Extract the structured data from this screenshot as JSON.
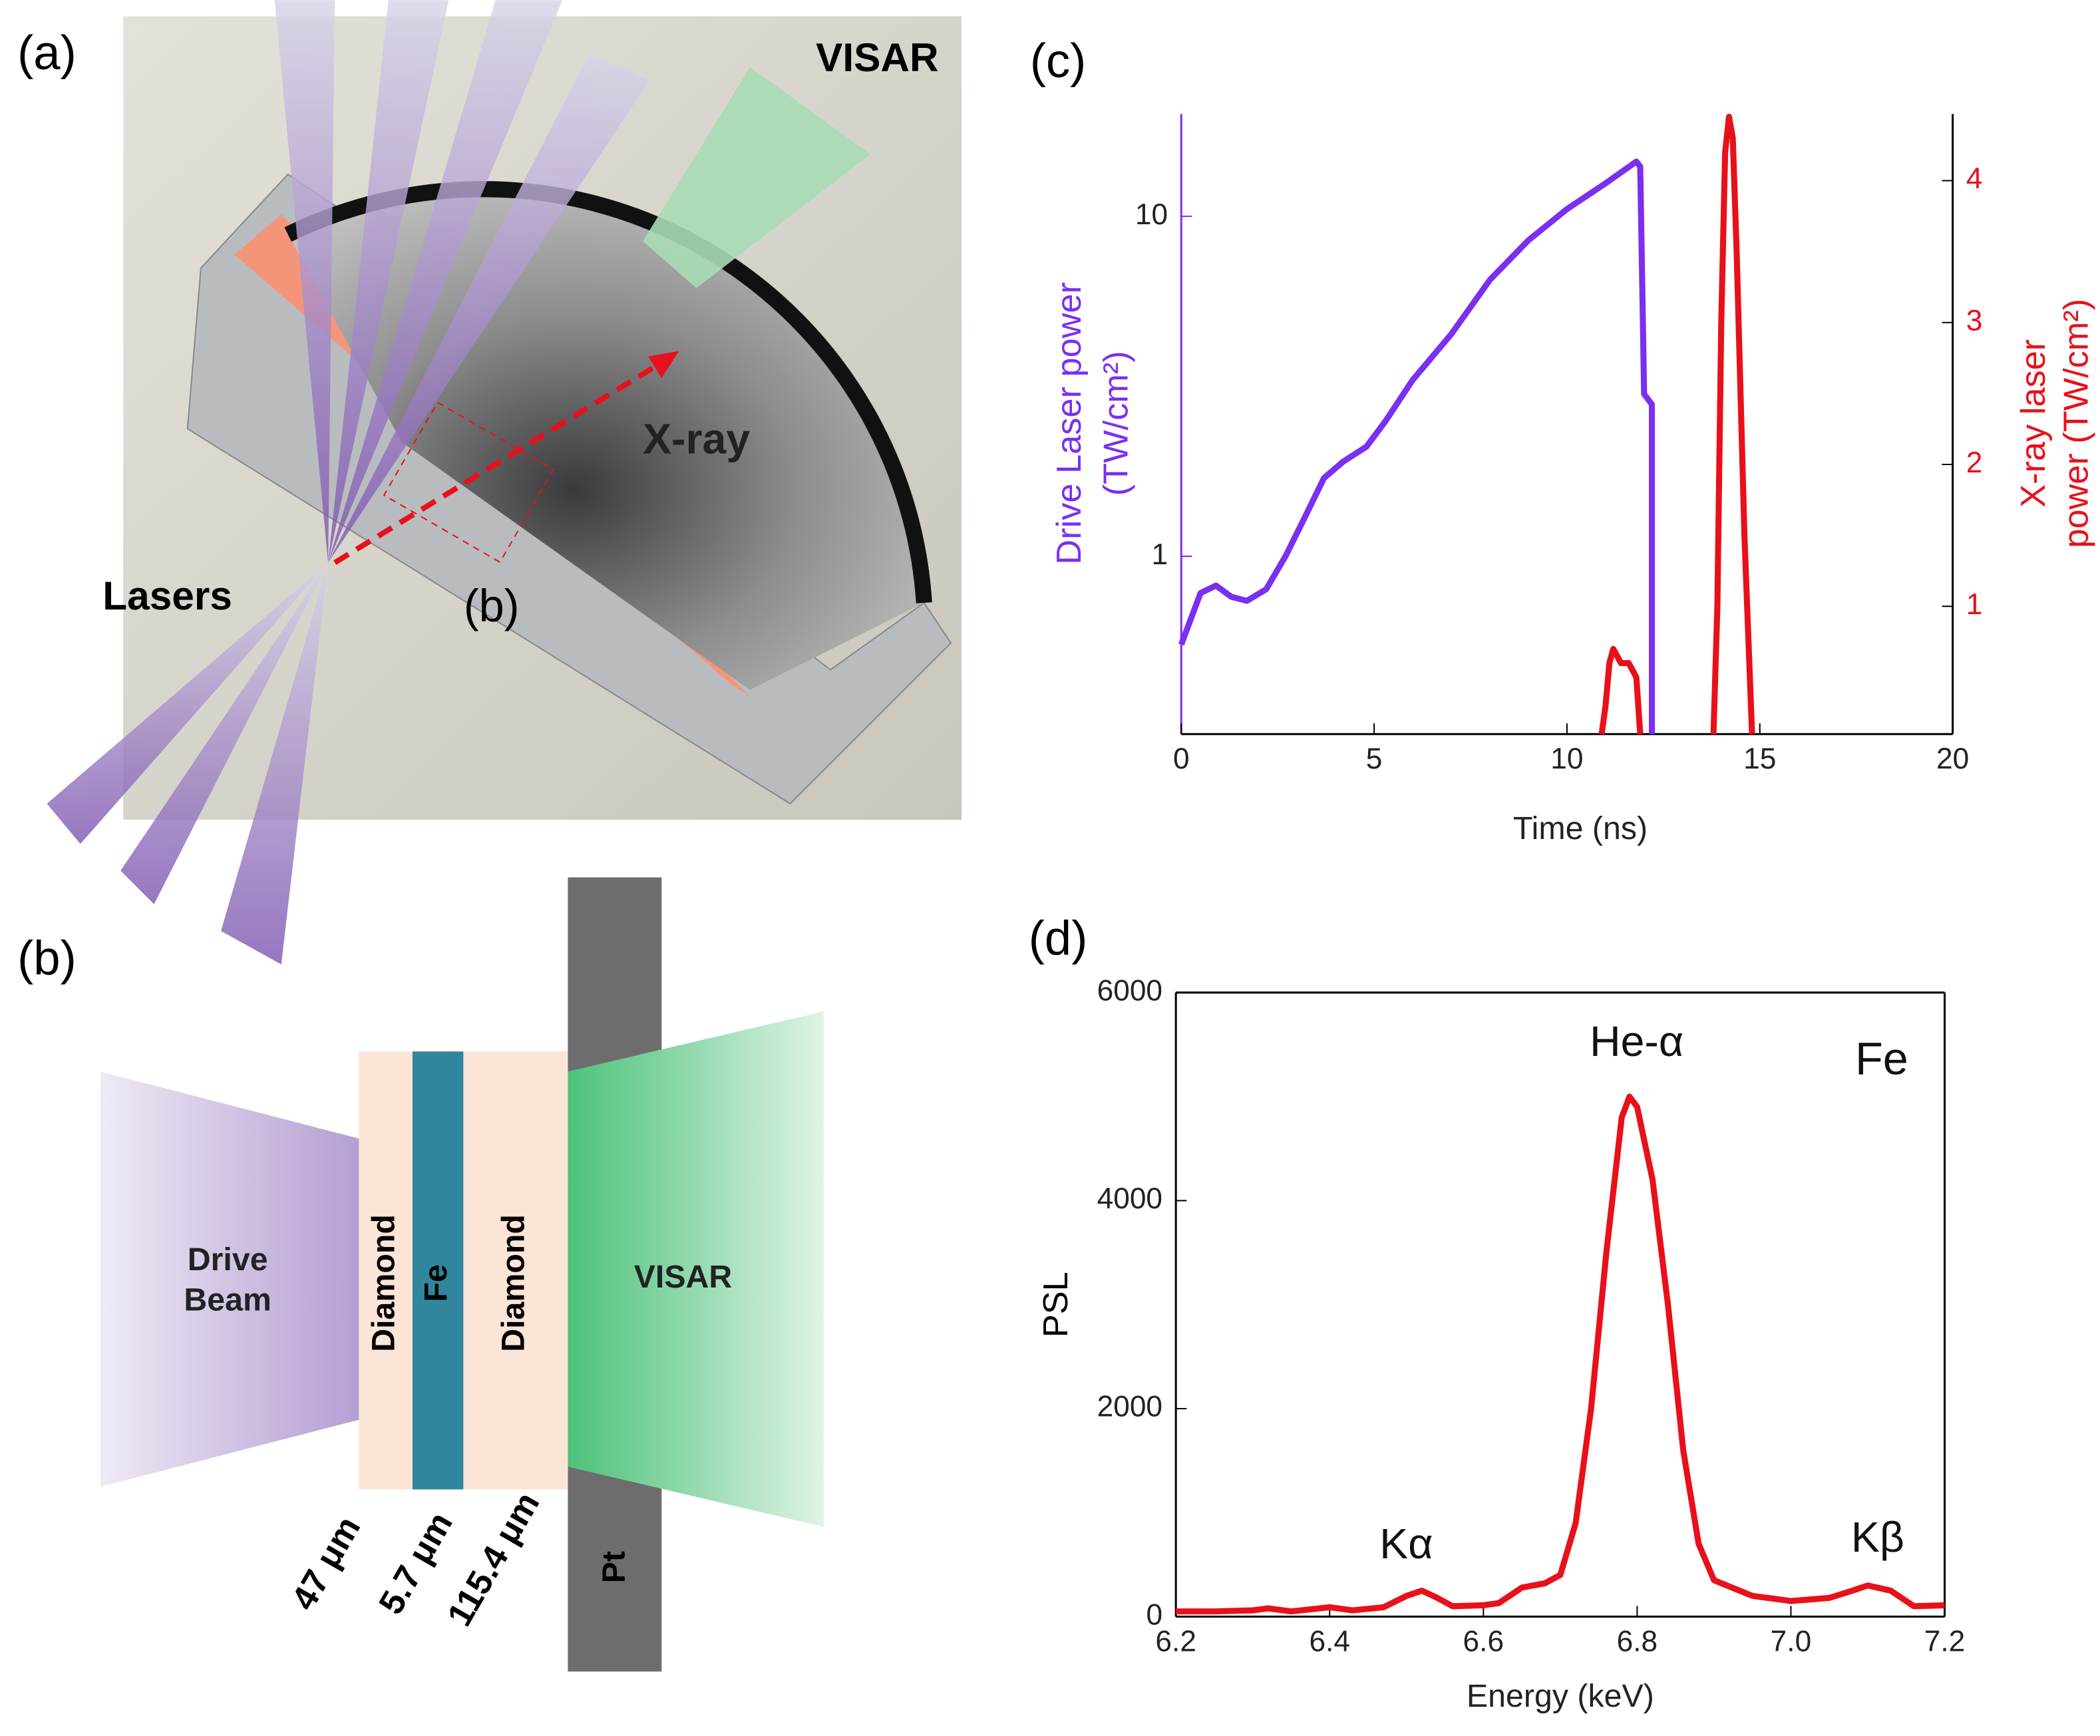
{
  "panels": {
    "a": "(a)",
    "b": "(b)",
    "c": "(c)",
    "d": "(d)"
  },
  "render": {
    "visar": "VISAR",
    "xray": "X-ray",
    "lasers": "Lasers",
    "inset": "(b)"
  },
  "diagram": {
    "drive": [
      "Drive",
      "Beam"
    ],
    "layers": [
      "Diamond",
      "Fe",
      "Diamond"
    ],
    "visar": "VISAR",
    "pt": "Pt",
    "thickness": [
      "47 μm",
      "5.7 μm",
      "115.4 μm"
    ]
  },
  "chart_data": [
    {
      "type": "line",
      "xlabel": "Time (ns)",
      "ylabel": [
        "Drive Laser power",
        "(TW/cm²)"
      ],
      "y2label": [
        "X-ray laser",
        "power (TW/cm²)"
      ],
      "xlim": [
        0,
        20
      ],
      "xticks": [
        0,
        5,
        10,
        15,
        20
      ],
      "ylim": [
        0.3,
        20
      ],
      "ylog": true,
      "yticks": [
        1,
        10
      ],
      "y2lim": [
        0.1,
        4.47
      ],
      "y2ticks": [
        1,
        2,
        3,
        4
      ],
      "grid": false,
      "series": [
        {
          "color": "#7b2ff0",
          "x": [
            0,
            0.5,
            0.9,
            1.3,
            1.7,
            2.2,
            2.7,
            3.2,
            3.7,
            4.2,
            4.8,
            5.3,
            6,
            7,
            8,
            9,
            10,
            11,
            11.8,
            11.9,
            12.0,
            12.2,
            12.2
          ],
          "values": [
            0.55,
            0.78,
            0.82,
            0.76,
            0.74,
            0.8,
            1.0,
            1.3,
            1.7,
            1.9,
            2.1,
            2.5,
            3.3,
            4.5,
            6.5,
            8.5,
            10.5,
            12.5,
            14.5,
            14.0,
            3.0,
            2.8,
            0.3
          ]
        },
        {
          "color": "#e8101a",
          "axis": "y2",
          "x": [
            10.9,
            11.0,
            11.1,
            11.2,
            11.4,
            11.6,
            11.8,
            11.9,
            null,
            13.8,
            13.9,
            14.0,
            14.1,
            14.2,
            14.3,
            14.4,
            14.6,
            14.8
          ],
          "values": [
            0.1,
            0.3,
            0.6,
            0.7,
            0.6,
            0.6,
            0.5,
            0.1,
            null,
            0.1,
            1.0,
            3.0,
            4.2,
            4.45,
            4.3,
            3.5,
            1.5,
            0.1
          ]
        }
      ]
    },
    {
      "type": "line",
      "xlabel": "Energy (keV)",
      "ylabel": [
        "PSL"
      ],
      "box": true,
      "xlim": [
        6.2,
        7.2
      ],
      "xticks": [
        6.2,
        6.4,
        6.6,
        6.8,
        {
          "value": 7,
          "label": "7.0"
        },
        7.2
      ],
      "ylim": [
        0,
        6000
      ],
      "yticks": [
        0,
        2000,
        4000,
        6000
      ],
      "grid": false,
      "color": "#e8101a",
      "x": [
        6.2,
        6.25,
        6.3,
        6.32,
        6.35,
        6.4,
        6.43,
        6.47,
        6.5,
        6.52,
        6.54,
        6.56,
        6.6,
        6.62,
        6.65,
        6.68,
        6.7,
        6.72,
        6.74,
        6.76,
        6.78,
        6.79,
        6.8,
        6.82,
        6.84,
        6.86,
        6.88,
        6.9,
        6.95,
        7.0,
        7.05,
        7.08,
        7.1,
        7.13,
        7.16,
        7.2
      ],
      "values": [
        50,
        50,
        60,
        80,
        50,
        90,
        60,
        90,
        200,
        250,
        180,
        100,
        110,
        130,
        280,
        320,
        400,
        900,
        2000,
        3500,
        4800,
        5000,
        4900,
        4200,
        3000,
        1600,
        700,
        350,
        200,
        150,
        180,
        250,
        300,
        250,
        100,
        110
      ],
      "annotations": [
        "He-α",
        "Kα",
        "Kβ",
        "Fe"
      ]
    }
  ]
}
